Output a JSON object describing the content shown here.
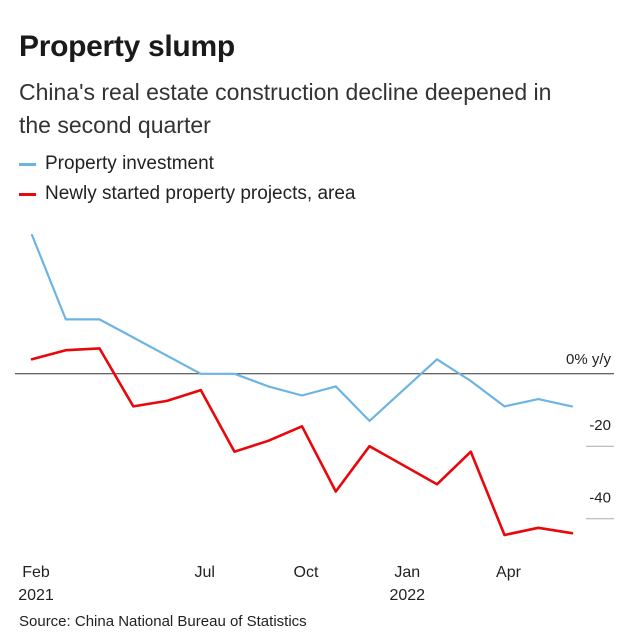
{
  "header": {
    "title": "Property slump",
    "subtitle": "China's real estate construction decline deepened in the second quarter"
  },
  "source": "Source: China National Bureau of Statistics",
  "colors": {
    "investment": "#6cb4e4",
    "new_projects": "#e8070a",
    "zero_line": "#333333",
    "grid": "#aaaaaa"
  },
  "chart_data": {
    "type": "line",
    "x": [
      "2021-02",
      "2021-03",
      "2021-04",
      "2021-05",
      "2021-06",
      "2021-07",
      "2021-08",
      "2021-09",
      "2021-10",
      "2021-11",
      "2021-12",
      "2022-01",
      "2022-02",
      "2022-03",
      "2022-04",
      "2022-05",
      "2022-06"
    ],
    "series": [
      {
        "name": "Property investment",
        "color": "#6cb4e4",
        "values": [
          38.3,
          15.0,
          15.0,
          10.0,
          5.0,
          0.0,
          0.0,
          -3.5,
          -6.0,
          -3.5,
          -13.0,
          null,
          4.0,
          -2.0,
          -9.0,
          -7.0,
          -9.0
        ]
      },
      {
        "name": "Newly started property projects, area",
        "color": "#e8070a",
        "values": [
          4.0,
          6.5,
          7.0,
          -9.0,
          -7.5,
          -4.5,
          -21.5,
          -18.5,
          -14.5,
          -32.5,
          -20.0,
          null,
          -30.5,
          -21.5,
          -44.5,
          -42.5,
          -44.0
        ]
      }
    ],
    "x_ticks": [
      {
        "x": "2021-02",
        "label": "Feb",
        "year": "2021"
      },
      {
        "x": "2021-07",
        "label": "Jul",
        "year": ""
      },
      {
        "x": "2021-10",
        "label": "Oct",
        "year": ""
      },
      {
        "x": "2022-01",
        "label": "Jan",
        "year": "2022"
      },
      {
        "x": "2022-04",
        "label": "Apr",
        "year": ""
      }
    ],
    "y_ticks": [
      {
        "value": 0,
        "label": "0% y/y"
      },
      {
        "value": -20,
        "label": "-20"
      },
      {
        "value": -40,
        "label": "-40"
      }
    ],
    "ylim": [
      -50,
      40
    ],
    "grid": false,
    "legend": "top-left"
  }
}
